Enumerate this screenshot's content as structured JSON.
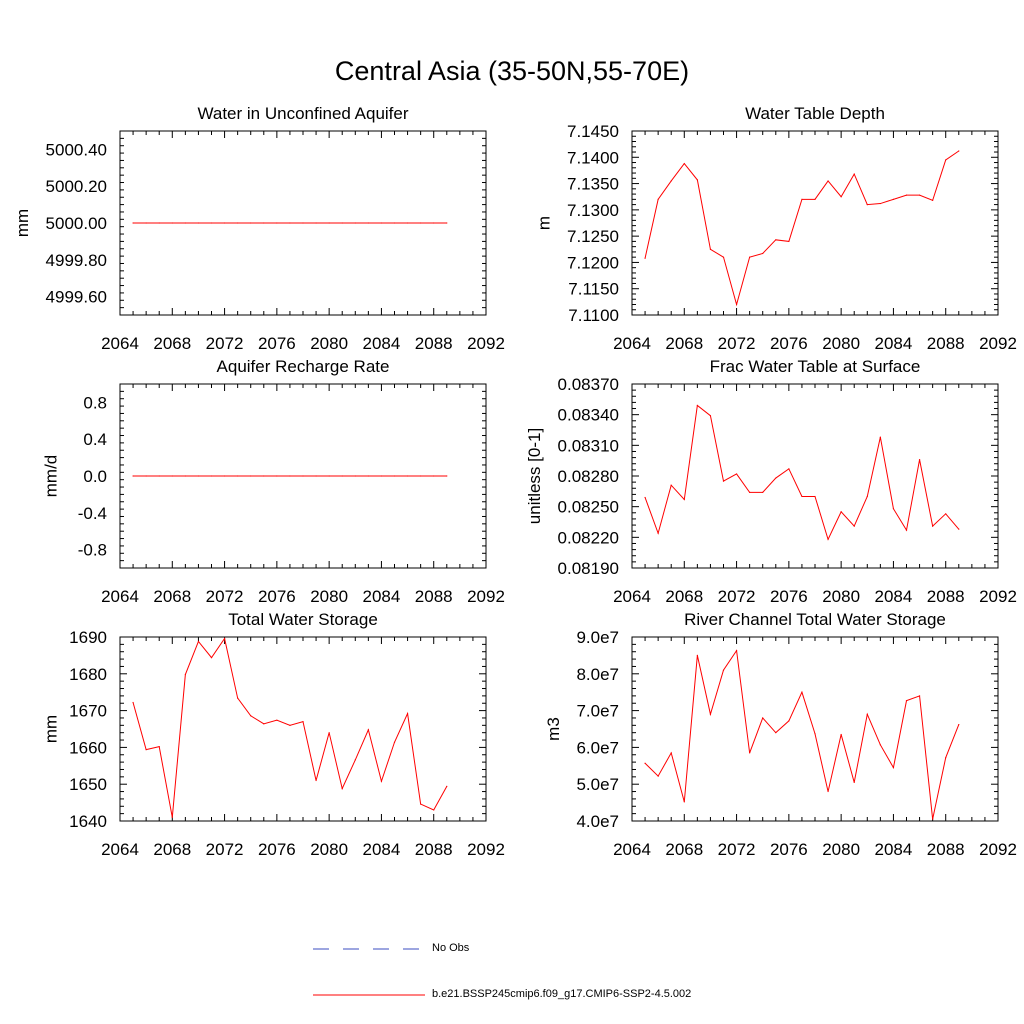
{
  "figure": {
    "title": "Central Asia (35-50N,55-70E)"
  },
  "legend": {
    "entries": [
      {
        "label": "No Obs",
        "style": "dashed",
        "color": "#3b4cc0"
      },
      {
        "label": "b.e21.BSSP245cmip6.f09_g17.CMIP6-SSP2-4.5.002",
        "style": "solid",
        "color": "#ff0000"
      }
    ]
  },
  "series_color": "#ff0000",
  "chart_data": [
    {
      "type": "line",
      "title": "Water in Unconfined Aquifer",
      "ylabel": "mm",
      "xlim": [
        2064,
        2092
      ],
      "xticks": [
        2064,
        2068,
        2072,
        2076,
        2080,
        2084,
        2088,
        2092
      ],
      "xtick_labels": [
        "2064",
        "2068",
        "2072",
        "2076",
        "2080",
        "2084",
        "2088",
        "2092"
      ],
      "ylim": [
        4999.5,
        5000.5
      ],
      "yticks": [
        4999.6,
        4999.8,
        5000.0,
        5000.2,
        5000.4
      ],
      "ytick_labels": [
        "4999.60",
        "4999.80",
        "5000.00",
        "5000.20",
        "5000.40"
      ],
      "x": [
        2065,
        2066,
        2067,
        2068,
        2069,
        2070,
        2071,
        2072,
        2073,
        2074,
        2075,
        2076,
        2077,
        2078,
        2079,
        2080,
        2081,
        2082,
        2083,
        2084,
        2085,
        2086,
        2087,
        2088,
        2089
      ],
      "values": [
        5000.0,
        5000.0,
        5000.0,
        5000.0,
        5000.0,
        5000.0,
        5000.0,
        5000.0,
        5000.0,
        5000.0,
        5000.0,
        5000.0,
        5000.0,
        5000.0,
        5000.0,
        5000.0,
        5000.0,
        5000.0,
        5000.0,
        5000.0,
        5000.0,
        5000.0,
        5000.0,
        5000.0,
        5000.0
      ]
    },
    {
      "type": "line",
      "title": "Water Table Depth",
      "ylabel": "m",
      "xlim": [
        2064,
        2092
      ],
      "xticks": [
        2064,
        2068,
        2072,
        2076,
        2080,
        2084,
        2088,
        2092
      ],
      "xtick_labels": [
        "2064",
        "2068",
        "2072",
        "2076",
        "2080",
        "2084",
        "2088",
        "2092"
      ],
      "ylim": [
        7.11,
        7.145
      ],
      "yticks": [
        7.11,
        7.115,
        7.12,
        7.125,
        7.13,
        7.135,
        7.14,
        7.145
      ],
      "ytick_labels": [
        "7.1100",
        "7.1150",
        "7.1200",
        "7.1250",
        "7.1300",
        "7.1350",
        "7.1400",
        "7.1450"
      ],
      "x": [
        2065,
        2066,
        2067,
        2068,
        2069,
        2070,
        2071,
        2072,
        2073,
        2074,
        2075,
        2076,
        2077,
        2078,
        2079,
        2080,
        2081,
        2082,
        2083,
        2084,
        2085,
        2086,
        2087,
        2088,
        2089
      ],
      "values": [
        7.1208,
        7.132,
        7.1355,
        7.1388,
        7.1357,
        7.1225,
        7.121,
        7.112,
        7.121,
        7.1217,
        7.1243,
        7.124,
        7.132,
        7.132,
        7.1355,
        7.1325,
        7.1368,
        7.131,
        7.1312,
        7.132,
        7.1328,
        7.1328,
        7.1318,
        7.1395,
        7.1412
      ]
    },
    {
      "type": "line",
      "title": "Aquifer Recharge Rate",
      "ylabel": "mm/d",
      "xlim": [
        2064,
        2092
      ],
      "xticks": [
        2064,
        2068,
        2072,
        2076,
        2080,
        2084,
        2088,
        2092
      ],
      "xtick_labels": [
        "2064",
        "2068",
        "2072",
        "2076",
        "2080",
        "2084",
        "2088",
        "2092"
      ],
      "ylim": [
        -1.0,
        1.0
      ],
      "yticks": [
        -0.8,
        -0.4,
        0.0,
        0.4,
        0.8
      ],
      "ytick_labels": [
        "-0.8",
        "-0.4",
        "0.0",
        "0.4",
        "0.8"
      ],
      "x": [
        2065,
        2066,
        2067,
        2068,
        2069,
        2070,
        2071,
        2072,
        2073,
        2074,
        2075,
        2076,
        2077,
        2078,
        2079,
        2080,
        2081,
        2082,
        2083,
        2084,
        2085,
        2086,
        2087,
        2088,
        2089
      ],
      "values": [
        0.0,
        0.0,
        0.0,
        0.0,
        0.0,
        0.0,
        0.0,
        0.0,
        0.0,
        0.0,
        0.0,
        0.0,
        0.0,
        0.0,
        0.0,
        0.0,
        0.0,
        0.0,
        0.0,
        0.0,
        0.0,
        0.0,
        0.0,
        0.0,
        0.0
      ]
    },
    {
      "type": "line",
      "title": "Frac Water Table at Surface",
      "ylabel": "unitless [0-1]",
      "xlim": [
        2064,
        2092
      ],
      "xticks": [
        2064,
        2068,
        2072,
        2076,
        2080,
        2084,
        2088,
        2092
      ],
      "xtick_labels": [
        "2064",
        "2068",
        "2072",
        "2076",
        "2080",
        "2084",
        "2088",
        "2092"
      ],
      "ylim": [
        0.0819,
        0.0837
      ],
      "yticks": [
        0.0819,
        0.0822,
        0.0825,
        0.0828,
        0.0831,
        0.0834,
        0.0837
      ],
      "ytick_labels": [
        "0.08190",
        "0.08220",
        "0.08250",
        "0.08280",
        "0.08310",
        "0.08340",
        "0.08370"
      ],
      "x": [
        2065,
        2066,
        2067,
        2068,
        2069,
        2070,
        2071,
        2072,
        2073,
        2074,
        2075,
        2076,
        2077,
        2078,
        2079,
        2080,
        2081,
        2082,
        2083,
        2084,
        2085,
        2086,
        2087,
        2088,
        2089
      ],
      "values": [
        0.08259,
        0.08224,
        0.08271,
        0.08257,
        0.08349,
        0.08339,
        0.08275,
        0.08282,
        0.08264,
        0.08264,
        0.08278,
        0.08287,
        0.0826,
        0.0826,
        0.08218,
        0.08245,
        0.08231,
        0.0826,
        0.08318,
        0.08248,
        0.08227,
        0.08296,
        0.08231,
        0.08243,
        0.08228
      ]
    },
    {
      "type": "line",
      "title": "Total Water Storage",
      "ylabel": "mm",
      "xlim": [
        2064,
        2092
      ],
      "xticks": [
        2064,
        2068,
        2072,
        2076,
        2080,
        2084,
        2088,
        2092
      ],
      "xtick_labels": [
        "2064",
        "2068",
        "2072",
        "2076",
        "2080",
        "2084",
        "2088",
        "2092"
      ],
      "ylim": [
        1640,
        1690
      ],
      "yticks": [
        1640,
        1650,
        1660,
        1670,
        1680,
        1690
      ],
      "ytick_labels": [
        "1640",
        "1650",
        "1660",
        "1670",
        "1680",
        "1690"
      ],
      "x": [
        2065,
        2066,
        2067,
        2068,
        2069,
        2070,
        2071,
        2072,
        2073,
        2074,
        2075,
        2076,
        2077,
        2078,
        2079,
        2080,
        2081,
        2082,
        2083,
        2084,
        2085,
        2086,
        2087,
        2088,
        2089
      ],
      "values": [
        1672.2,
        1659.4,
        1660.2,
        1641.0,
        1679.8,
        1688.8,
        1684.4,
        1689.6,
        1673.4,
        1668.6,
        1666.4,
        1667.4,
        1666.0,
        1667.0,
        1651.0,
        1664.0,
        1648.8,
        1656.6,
        1664.8,
        1650.8,
        1661.4,
        1669.2,
        1644.6,
        1643.0,
        1649.4
      ]
    },
    {
      "type": "line",
      "title": "River Channel Total Water Storage",
      "ylabel": "m3",
      "xlim": [
        2064,
        2092
      ],
      "xticks": [
        2064,
        2068,
        2072,
        2076,
        2080,
        2084,
        2088,
        2092
      ],
      "xtick_labels": [
        "2064",
        "2068",
        "2072",
        "2076",
        "2080",
        "2084",
        "2088",
        "2092"
      ],
      "ylim": [
        40000000,
        90000000
      ],
      "yticks": [
        40000000,
        50000000,
        60000000,
        70000000,
        80000000,
        90000000
      ],
      "ytick_labels": [
        "4.0e7",
        "5.0e7",
        "6.0e7",
        "7.0e7",
        "8.0e7",
        "9.0e7"
      ],
      "x": [
        2065,
        2066,
        2067,
        2068,
        2069,
        2070,
        2071,
        2072,
        2073,
        2074,
        2075,
        2076,
        2077,
        2078,
        2079,
        2080,
        2081,
        2082,
        2083,
        2084,
        2085,
        2086,
        2087,
        2088,
        2089
      ],
      "values": [
        55700000,
        52200000,
        58500000,
        45200000,
        85000000,
        69000000,
        81000000,
        86300000,
        58500000,
        68000000,
        64000000,
        67200000,
        75000000,
        63700000,
        48000000,
        63500000,
        50500000,
        69000000,
        60700000,
        54500000,
        72700000,
        74000000,
        40500000,
        57200000,
        66200000
      ]
    }
  ]
}
